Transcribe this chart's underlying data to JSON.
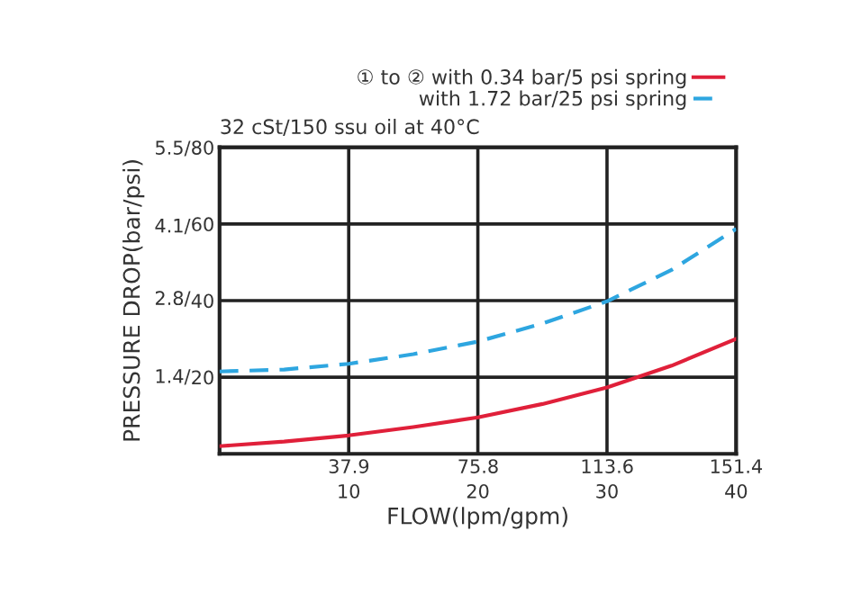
{
  "chart_data": {
    "type": "line",
    "subtitle": "32 cSt/150 ssu oil at 40°C",
    "xlabel": "FLOW(lpm/gpm)",
    "ylabel": "PRESSURE DROP(bar/psi)",
    "x": [
      0,
      5,
      10,
      15,
      20,
      25,
      30,
      35,
      40
    ],
    "series": [
      {
        "name": "① to ② with 0.34 bar/5 psi spring",
        "color": "#e0203a",
        "line_style": "solid",
        "axis": "y2",
        "values": [
          2,
          3.2,
          4.8,
          7,
          9.5,
          13,
          17.3,
          23,
          30
        ]
      },
      {
        "name": "with 1.72 bar/25 psi spring",
        "color": "#2ea6e0",
        "line_style": "dashed",
        "axis": "y2",
        "values": [
          21.5,
          22,
          23.5,
          26,
          29.3,
          34,
          39.8,
          48,
          58.7
        ]
      }
    ],
    "xlim": [
      0,
      40
    ],
    "xticks": [
      10,
      20,
      30,
      40
    ],
    "x2lim": [
      0,
      151.4
    ],
    "x2ticks": [
      37.9,
      75.8,
      113.6,
      151.4
    ],
    "ylim": [
      0,
      5.5
    ],
    "yticks": [
      {
        "value": 1.4,
        "label": "1.4/"
      },
      {
        "value": 2.8,
        "label": "2.8/"
      },
      {
        "value": 4.1,
        "label": "4.1/"
      },
      {
        "value": 5.5,
        "label": "5.5/"
      }
    ],
    "y2lim": [
      0,
      80
    ],
    "y2ticks": [
      20,
      40,
      60,
      80
    ],
    "grid": true,
    "legend": "top"
  }
}
